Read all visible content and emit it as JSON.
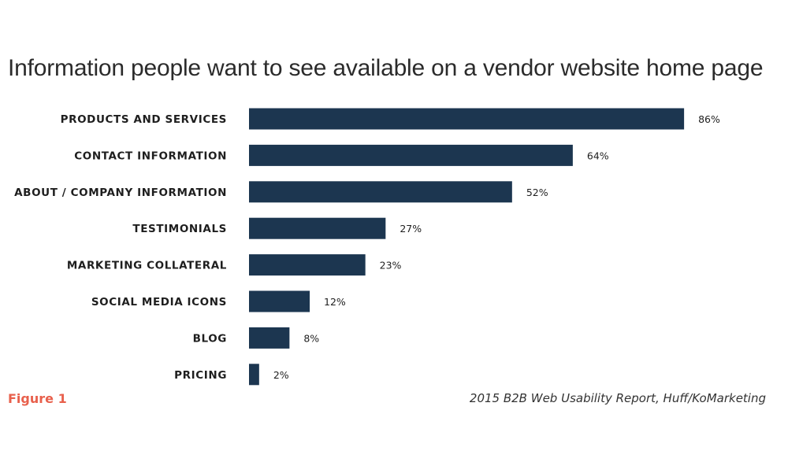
{
  "colors": {
    "bar": "#1c3650",
    "figure_label": "#e8604c"
  },
  "figure_label": "Figure 1",
  "source": "2015 B2B Web Usability Report, Huff/KoMarketing",
  "chart_data": {
    "type": "bar",
    "orientation": "horizontal",
    "title": "Information people want to see available on a vendor website home page",
    "xlabel": "",
    "ylabel": "",
    "xlim": [
      0,
      100
    ],
    "grid": false,
    "legend": "none",
    "categories": [
      "PRODUCTS AND SERVICES",
      "CONTACT INFORMATION",
      "ABOUT / COMPANY INFORMATION",
      "TESTIMONIALS",
      "MARKETING COLLATERAL",
      "SOCIAL MEDIA ICONS",
      "BLOG",
      "PRICING"
    ],
    "values": [
      86,
      64,
      52,
      27,
      23,
      12,
      8,
      2
    ],
    "value_labels": [
      "86%",
      "64%",
      "52%",
      "27%",
      "23%",
      "12%",
      "8%",
      "2%"
    ]
  }
}
